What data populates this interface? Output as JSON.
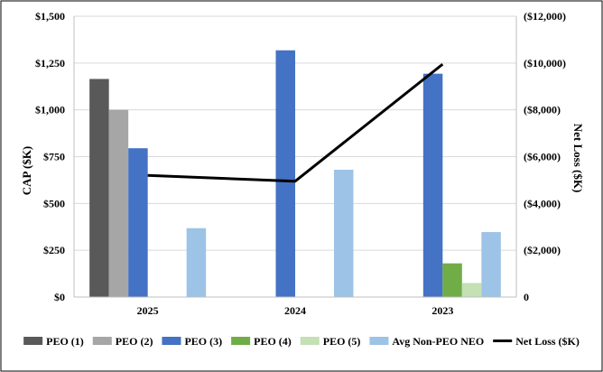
{
  "chart_data": {
    "type": "bar",
    "categories": [
      "2025",
      "2024",
      "2023"
    ],
    "series": [
      {
        "name": "PEO (1)",
        "values": [
          1165,
          null,
          null
        ],
        "color": "#595959"
      },
      {
        "name": "PEO (2)",
        "values": [
          1000,
          null,
          null
        ],
        "color": "#a6a6a6"
      },
      {
        "name": "PEO (3)",
        "values": [
          795,
          1318,
          1193
        ],
        "color": "#4472c4"
      },
      {
        "name": "PEO (4)",
        "values": [
          null,
          null,
          180
        ],
        "color": "#70ad47"
      },
      {
        "name": "PEO (5)",
        "values": [
          null,
          null,
          75
        ],
        "color": "#c5e0b4"
      },
      {
        "name": "Avg Non-PEO NEO",
        "values": [
          368,
          680,
          347
        ],
        "color": "#9dc3e6"
      }
    ],
    "line_series": {
      "name": "Net Loss ($K)",
      "values": [
        5200,
        4950,
        9950
      ],
      "color": "#000000",
      "axis": "right"
    },
    "ylabel": "CAP ($K)",
    "y2label": "Net Loss ($K)",
    "ylim": [
      0,
      1500
    ],
    "y2lim": [
      0,
      12000
    ],
    "yticks": [
      "$0",
      "$250",
      "$500",
      "$750",
      "$1,000",
      "$1,250",
      "$1,500"
    ],
    "y2ticks": [
      "0",
      "($2,000)",
      "($4,000)",
      "($6,000)",
      "($8,000)",
      "($10,000)",
      "($12,000)"
    ],
    "grid": true,
    "legend_position": "bottom"
  }
}
